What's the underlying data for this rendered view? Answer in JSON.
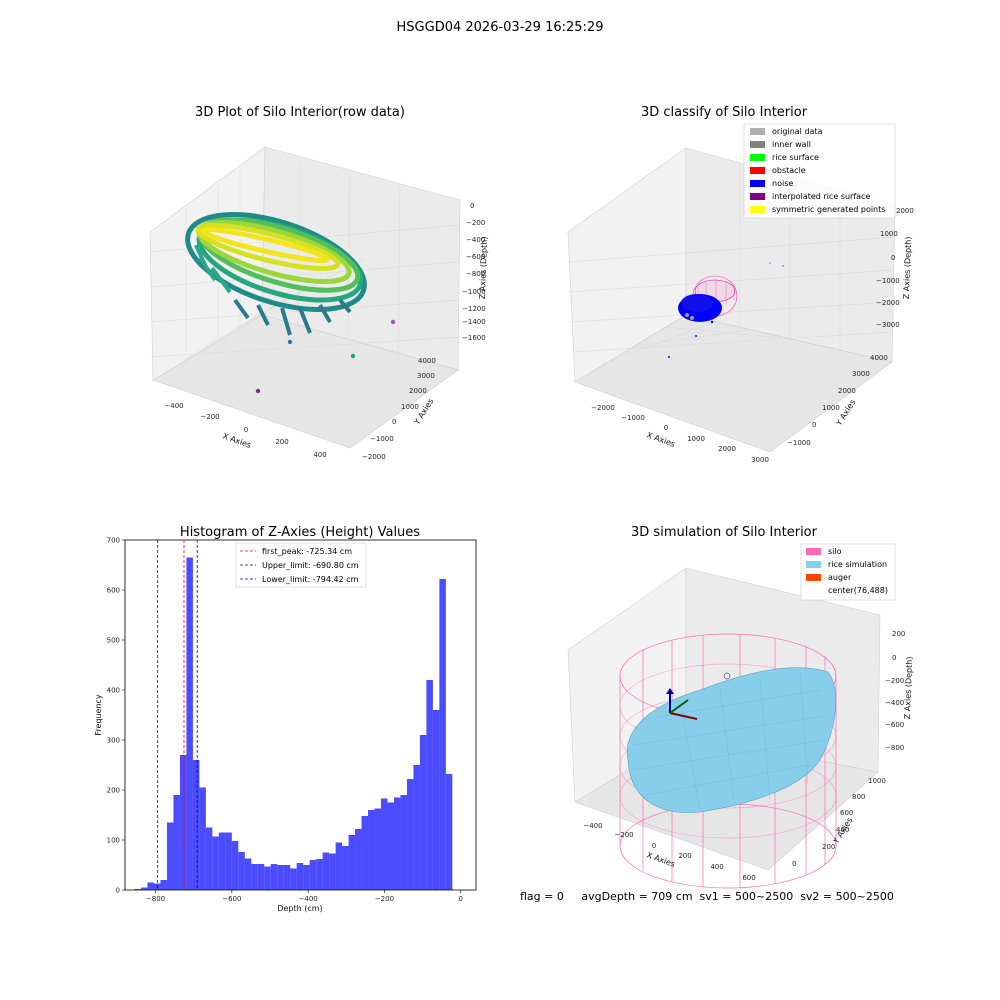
{
  "suptitle": "HSGGD04 2026-03-29 16:25:29",
  "panels": {
    "raw": {
      "title": "3D Plot of Silo Interior(row data)",
      "xlabel": "X Axies",
      "ylabel": "Y Axies",
      "zlabel": "Z Axies (Depth)",
      "x_ticks": [
        "−400",
        "−200",
        "0",
        "200",
        "400"
      ],
      "y_ticks": [
        "−2000",
        "−1000",
        "0",
        "1000",
        "2000",
        "3000",
        "4000"
      ],
      "z_ticks": [
        "0",
        "−200",
        "−400",
        "−600",
        "−800",
        "−1000",
        "−1200",
        "−1400",
        "−1600"
      ]
    },
    "classify": {
      "title": "3D classify of Silo Interior",
      "xlabel": "X Axies",
      "ylabel": "Y Axies",
      "zlabel": "Z Axies (Depth)",
      "x_ticks": [
        "−2000",
        "−1000",
        "0",
        "1000",
        "2000",
        "3000"
      ],
      "y_ticks": [
        "−1000",
        "0",
        "1000",
        "2000",
        "3000",
        "4000"
      ],
      "z_ticks": [
        "2000",
        "1000",
        "0",
        "−1000",
        "−2000",
        "−3000"
      ],
      "legend": [
        {
          "label": "original data",
          "color": "#b0b0b0"
        },
        {
          "label": "inner wall",
          "color": "#808080"
        },
        {
          "label": "rice surface",
          "color": "#00ff00"
        },
        {
          "label": "obstacle",
          "color": "#ff0000"
        },
        {
          "label": "noise",
          "color": "#0000ff"
        },
        {
          "label": "interpolated rice surface",
          "color": "#800080"
        },
        {
          "label": "symmetric generated points",
          "color": "#ffff00"
        }
      ]
    },
    "simulation": {
      "title": "3D simulation of Silo Interior",
      "xlabel": "X Axies",
      "ylabel": "Y Axies",
      "zlabel": "Z Axies (Depth)",
      "x_ticks": [
        "−400",
        "−200",
        "0",
        "200",
        "400",
        "600"
      ],
      "y_ticks": [
        "0",
        "200",
        "400",
        "600",
        "800",
        "1000"
      ],
      "z_ticks": [
        "200",
        "0",
        "−200",
        "−400",
        "−600",
        "−800"
      ],
      "legend": [
        {
          "label": "silo",
          "color": "#ff69b4"
        },
        {
          "label": "rice simulation",
          "color": "#87ceeb"
        },
        {
          "label": "auger",
          "color": "#ff4500"
        },
        {
          "label": "center(76,488)",
          "color": ""
        }
      ]
    }
  },
  "footer": "flag = 0     avgDepth = 709 cm  sv1 = 500~2500  sv2 = 500~2500",
  "chart_data": {
    "type": "bar",
    "title": "Histogram of Z-Axies (Height) Values",
    "xlabel": "Depth (cm)",
    "ylabel": "Frequency",
    "xlim": [
      -880,
      40
    ],
    "ylim": [
      0,
      700
    ],
    "xticks": [
      -800,
      -600,
      -400,
      -200,
      0
    ],
    "yticks": [
      0,
      100,
      200,
      300,
      400,
      500,
      600,
      700
    ],
    "bin_width": 17,
    "bin_start": -855,
    "values": [
      2,
      5,
      15,
      13,
      20,
      135,
      190,
      270,
      665,
      260,
      205,
      125,
      107,
      115,
      115,
      98,
      76,
      63,
      52,
      52,
      47,
      52,
      50,
      50,
      43,
      54,
      50,
      60,
      62,
      75,
      73,
      95,
      88,
      110,
      122,
      148,
      160,
      163,
      183,
      175,
      185,
      190,
      222,
      250,
      310,
      420,
      360,
      622,
      232
    ],
    "color": "#0000ff",
    "vlines": [
      {
        "label": "first_peak: -725.34 cm",
        "x": -725.34,
        "color": "#ff0000"
      },
      {
        "label": "Upper_limit: -690.80 cm",
        "x": -690.8,
        "color": "#00008b"
      },
      {
        "label": "Lower_limit: -794.42 cm",
        "x": -794.42,
        "color": "#0000ff"
      }
    ]
  }
}
